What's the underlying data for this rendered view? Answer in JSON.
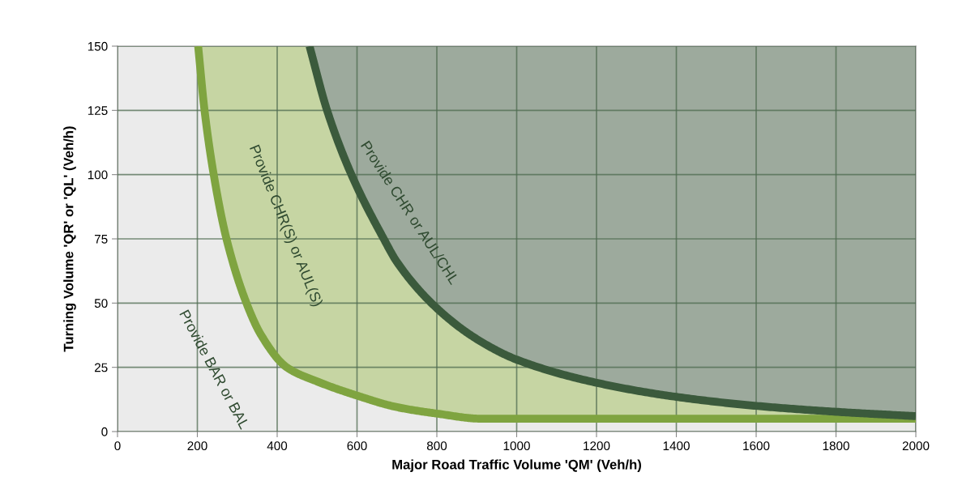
{
  "chart_data": {
    "type": "line",
    "xlabel": "Major Road Traffic Volume 'QM' (Veh/h)",
    "ylabel": "Turning Volume 'QR' or 'QL' (Veh/h)",
    "xlim": [
      0,
      2000
    ],
    "xticks": [
      0,
      200,
      400,
      600,
      800,
      1000,
      1200,
      1400,
      1600,
      1800,
      2000
    ],
    "ylim": [
      0,
      150
    ],
    "yticks": [
      0,
      25,
      50,
      75,
      100,
      125,
      150
    ],
    "grid": true,
    "legend": false,
    "series": [
      {
        "color": "#7fa440",
        "x": [
          202,
          218,
          241,
          273,
          323,
          360,
          424,
          500,
          600,
          700,
          800,
          912,
          2000
        ],
        "values": [
          150,
          125,
          100,
          75,
          50,
          37.5,
          25,
          19.5,
          14,
          9.5,
          7,
          5,
          5
        ]
      },
      {
        "color": "#3b5a3c",
        "x": [
          481,
          525,
          586,
          667,
          700,
          800,
          900,
          1000,
          1200,
          1400,
          1600,
          1800,
          2000
        ],
        "values": [
          150,
          125,
          100,
          75,
          66,
          48,
          36,
          28,
          19,
          13.5,
          10,
          7.7,
          6
        ]
      }
    ],
    "annotations": [
      "Provide BAR or BAL",
      "Provide CHR(S) or AUL(S)",
      "Provide CHR or AUL/CHL"
    ]
  }
}
